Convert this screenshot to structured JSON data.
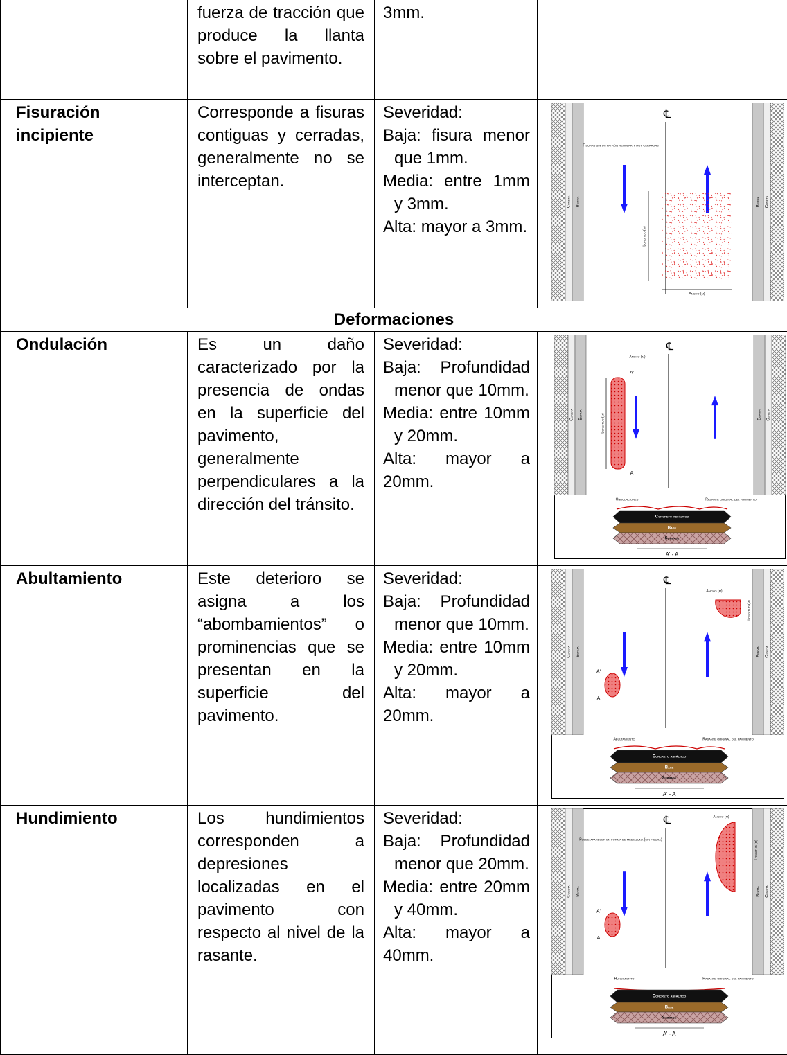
{
  "table": {
    "rows": [
      {
        "description": "fuerza de tracción que produce la llanta sobre el pavimento.",
        "severity_tail": "3mm."
      },
      {
        "name": "Fisuración incipiente",
        "description": "Corresponde a fisuras contiguas y cerradas, generalmente no se interceptan.",
        "severity": {
          "label": "Severidad:",
          "levels": [
            "Baja: fisura menor que 1mm.",
            "Media: entre 1mm y 3mm.",
            "Alta: mayor a 3mm."
          ]
        },
        "figure": {
          "centerline": "℄",
          "cuneta": "Cuneta",
          "berma": "Berma",
          "note": "Fisuras sin un patrón regular y muy cerradas",
          "length": "Longitud (m)",
          "width": "Ancho (m)"
        }
      }
    ],
    "section": "Deformaciones",
    "deformation_rows": [
      {
        "name": "Ondulación",
        "description": "Es un daño caracterizado por la presencia de ondas en la superficie del pavimento, generalmente perpendiculares a la dirección del tránsito.",
        "severity": {
          "label": "Severidad:",
          "levels": [
            "Baja: Profundidad menor que 10mm.",
            "Media: entre 10mm y 20mm.",
            "Alta: mayor a 20mm."
          ]
        },
        "figure": {
          "centerline": "℄",
          "cuneta": "Cuneta",
          "berma": "Berma",
          "width": "Ancho (m)",
          "length": "Longitud (m)",
          "marker_start": "A'",
          "marker_end": "A",
          "damage": "Ondulaciones",
          "original_grade": "Rasante original del pavimento",
          "layers": [
            "Concreto asfáltico",
            "Base",
            "Subbase"
          ],
          "cut": "A' - A"
        }
      },
      {
        "name": "Abultamiento",
        "description": "Este deterioro se asigna a los “abombamientos” o prominencias que se presentan en la superficie del pavimento.",
        "severity": {
          "label": "Severidad:",
          "levels": [
            "Baja: Profundidad menor que 10mm.",
            "Media: entre 10mm y 20mm.",
            "Alta: mayor a 20mm."
          ]
        },
        "figure": {
          "centerline": "℄",
          "cuneta": "Cuneta",
          "berma": "Berma",
          "width": "Ancho (m)",
          "length": "Longitud (m)",
          "marker_start": "A'",
          "marker_end": "A",
          "damage": "Abultamiento",
          "original_grade": "Rasante original del pavimento",
          "layers": [
            "Concreto asfáltico",
            "Base",
            "Subbase"
          ],
          "cut": "A' - A"
        }
      },
      {
        "name": "Hundimiento",
        "description": "Los hundimientos corresponden a depresiones localizadas en el pavimento con respecto al nivel de la rasante.",
        "severity": {
          "label": "Severidad:",
          "levels": [
            "Baja: Profundidad menor que 20mm.",
            "Media: entre 20mm y 40mm.",
            "Alta: mayor a 40mm."
          ]
        },
        "figure": {
          "centerline": "℄",
          "cuneta": "Cuneta",
          "berma": "Berma",
          "width": "Ancho (m)",
          "length": "Longitud (m)",
          "note": "Puede aparecer en forma de medialuna (sin fisura)",
          "marker_start": "A'",
          "marker_end": "A",
          "damage": "Hundimiento",
          "original_grade": "Rasante original del pavimento",
          "layers": [
            "Concreto asfáltico",
            "Base",
            "Subbase"
          ],
          "cut": "A' - A"
        }
      }
    ]
  }
}
